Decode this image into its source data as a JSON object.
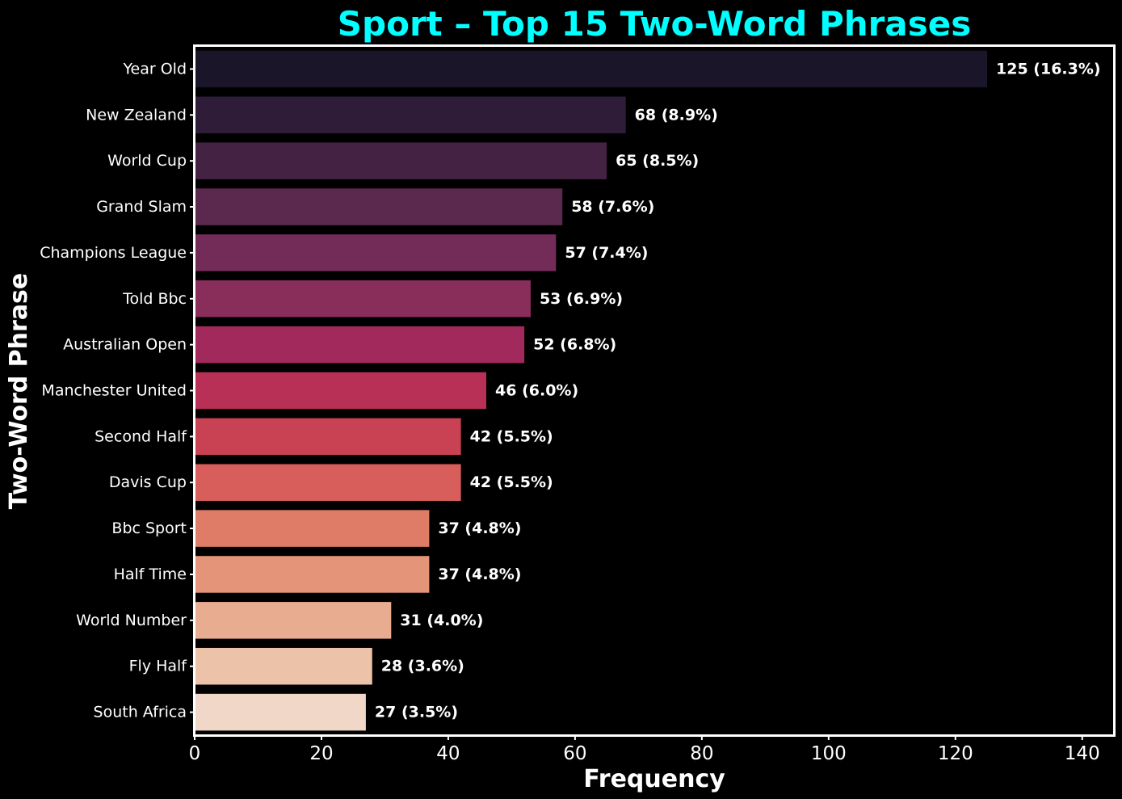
{
  "chart_data": {
    "type": "bar",
    "orientation": "horizontal",
    "title": "Sport – Top 15 Two-Word Phrases",
    "xlabel": "Frequency",
    "ylabel": "Two-Word Phrase",
    "xlim": [
      0,
      145
    ],
    "xticks": [
      0,
      20,
      40,
      60,
      80,
      100,
      120,
      140
    ],
    "grid": false,
    "categories": [
      "Year Old",
      "New Zealand",
      "World Cup",
      "Grand Slam",
      "Champions League",
      "Told Bbc",
      "Australian Open",
      "Manchester United",
      "Second Half",
      "Davis Cup",
      "Bbc Sport",
      "Half Time",
      "World Number",
      "Fly Half",
      "South Africa"
    ],
    "values": [
      125,
      68,
      65,
      58,
      57,
      53,
      52,
      46,
      42,
      42,
      37,
      37,
      31,
      28,
      27
    ],
    "data_labels": [
      "125 (16.3%)",
      "68 (8.9%)",
      "65 (8.5%)",
      "58 (7.6%)",
      "57 (7.4%)",
      "53 (6.9%)",
      "52 (6.8%)",
      "46 (6.0%)",
      "42 (5.5%)",
      "42 (5.5%)",
      "37 (4.8%)",
      "37 (4.8%)",
      "31 (4.0%)",
      "28 (3.6%)",
      "27 (3.5%)"
    ],
    "colors": [
      "#1a1528",
      "#2f1c38",
      "#442243",
      "#5b284e",
      "#722c57",
      "#892d5b",
      "#a2295b",
      "#b83055",
      "#c94253",
      "#d75e5a",
      "#df7c67",
      "#e49579",
      "#e8ac91",
      "#ecc2a8",
      "#f1d7c7"
    ]
  },
  "style": {
    "background": "#000000",
    "title_color": "#00ffff",
    "text_color": "#ffffff",
    "frame_color": "#ffffff"
  }
}
